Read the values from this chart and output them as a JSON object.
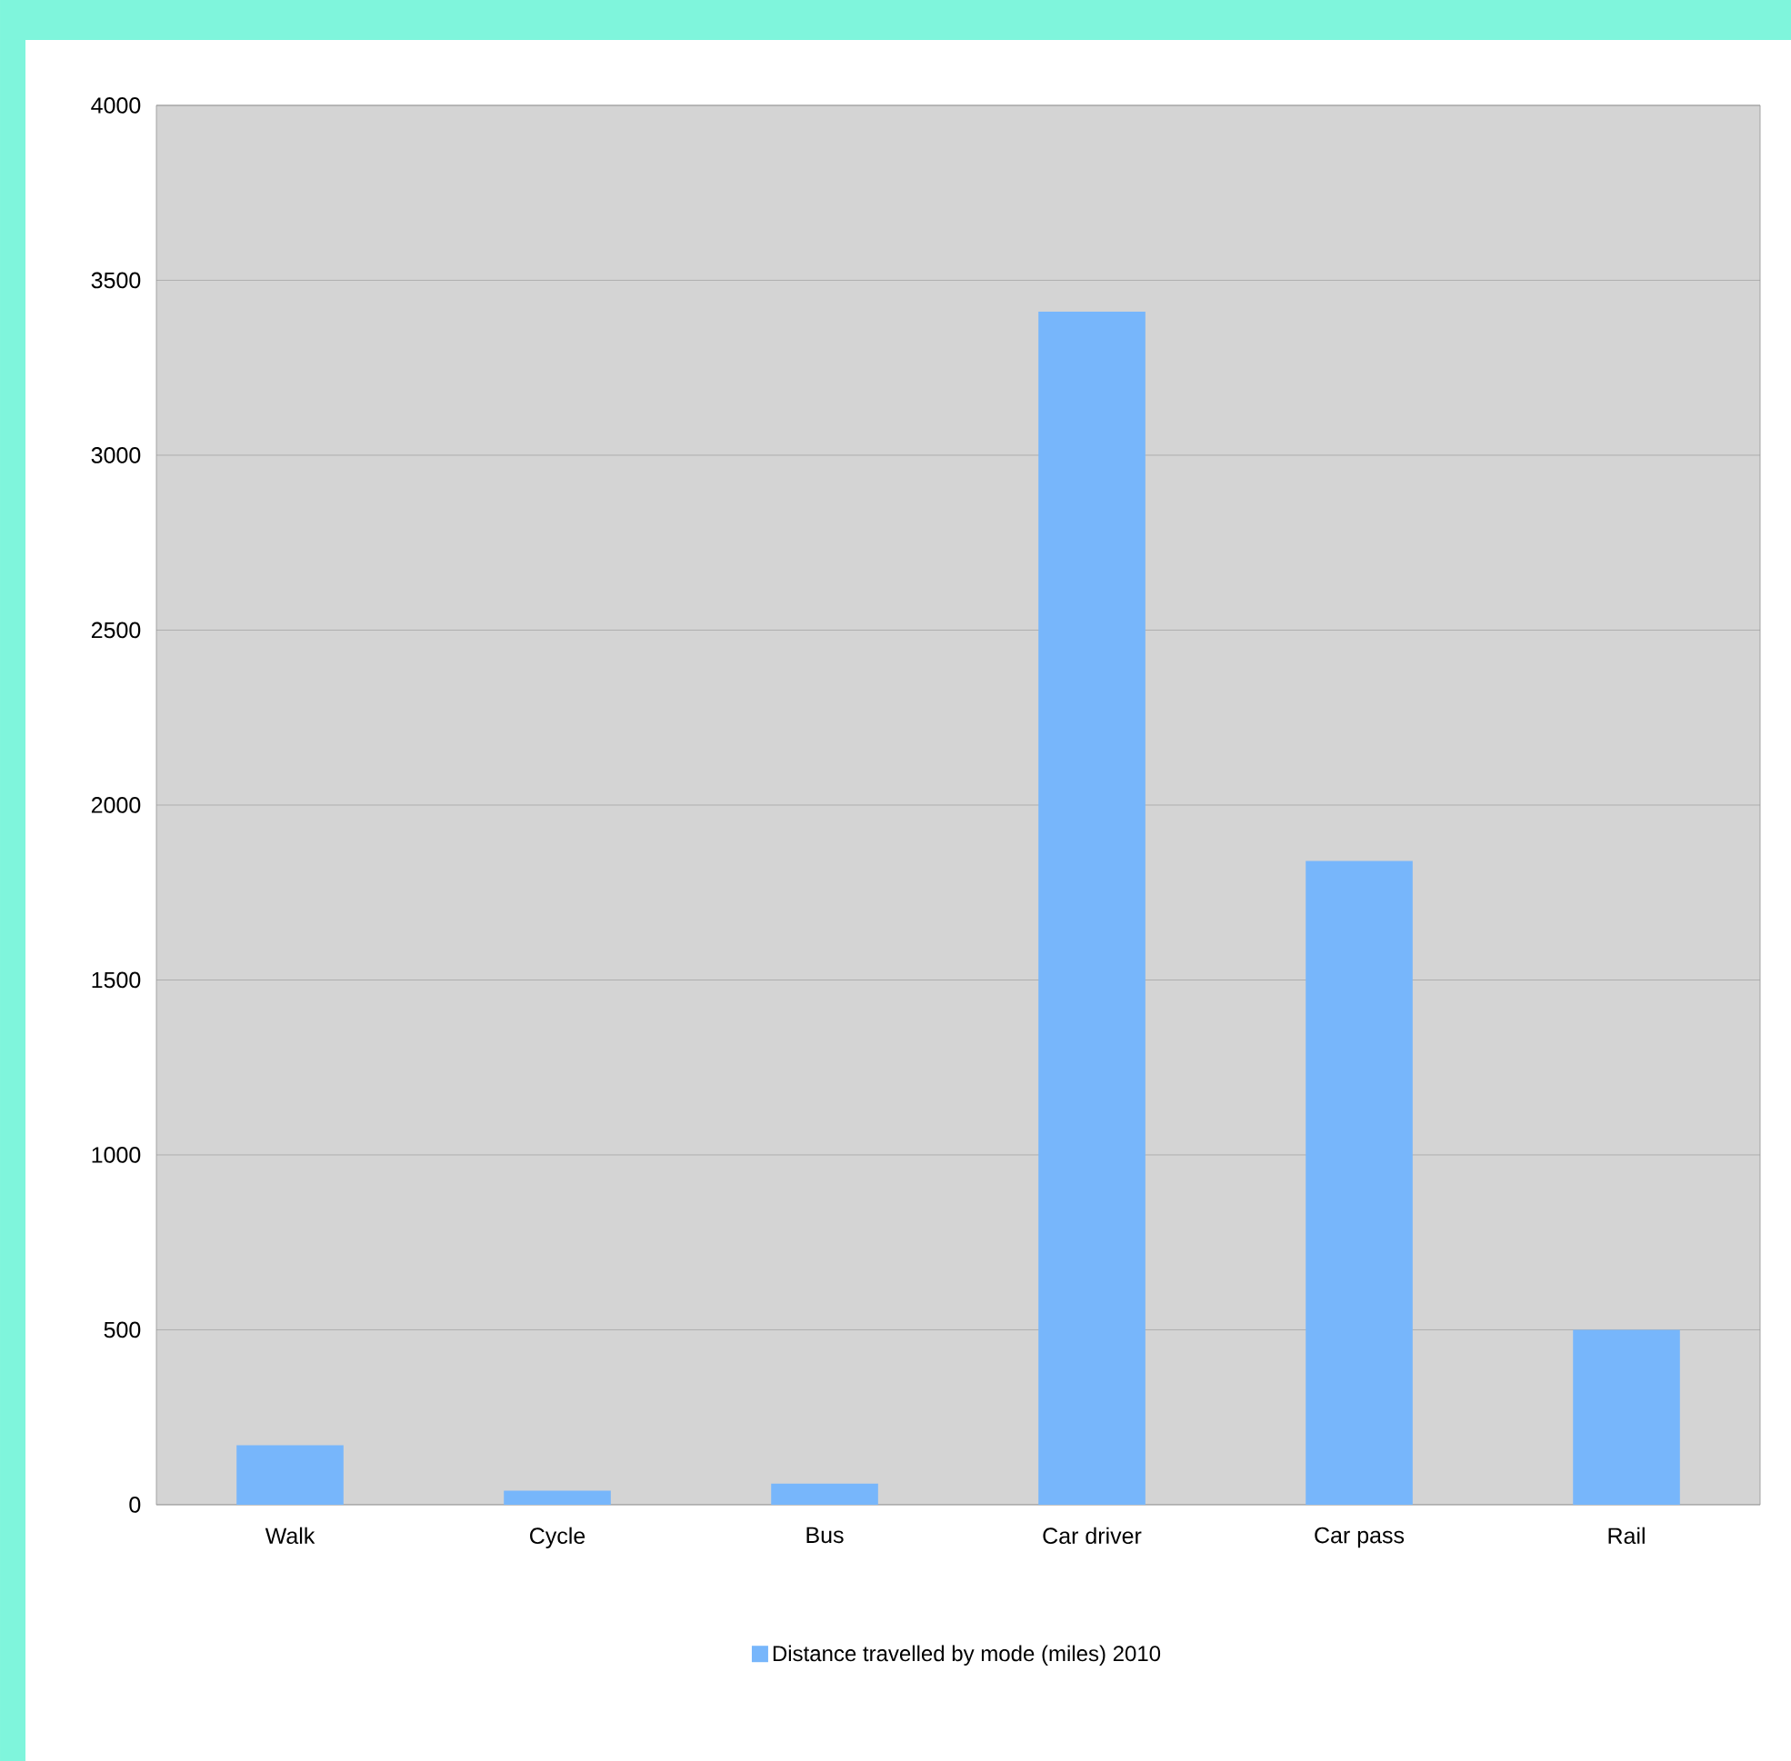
{
  "chart_data": {
    "type": "bar",
    "categories": [
      "Walk",
      "Cycle",
      "Bus",
      "Car driver",
      "Car pass",
      "Rail"
    ],
    "series": [
      {
        "name": "Distance travelled by mode (miles) 2010",
        "color": "#77b6fb",
        "values": [
          170,
          40,
          60,
          3410,
          1840,
          500
        ]
      }
    ],
    "ylim": [
      0,
      4000
    ],
    "yticks": [
      0,
      500,
      1000,
      1500,
      2000,
      2500,
      3000,
      3500,
      4000
    ],
    "grid": "y",
    "legend": "bottom"
  }
}
